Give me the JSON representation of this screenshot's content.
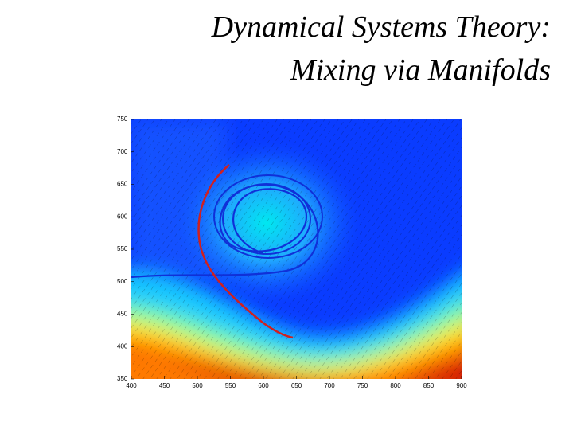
{
  "chart_data": {
    "type": "field",
    "title": [
      "Dynamical Systems Theory:",
      "Mixing via Manifolds"
    ],
    "xlim": [
      400,
      900
    ],
    "xticks": [
      400,
      450,
      500,
      550,
      600,
      650,
      700,
      750,
      800,
      850,
      900
    ],
    "ylim": [
      350,
      750
    ],
    "yticks": [
      350,
      400,
      450,
      500,
      550,
      600,
      650,
      700,
      750
    ]
  }
}
